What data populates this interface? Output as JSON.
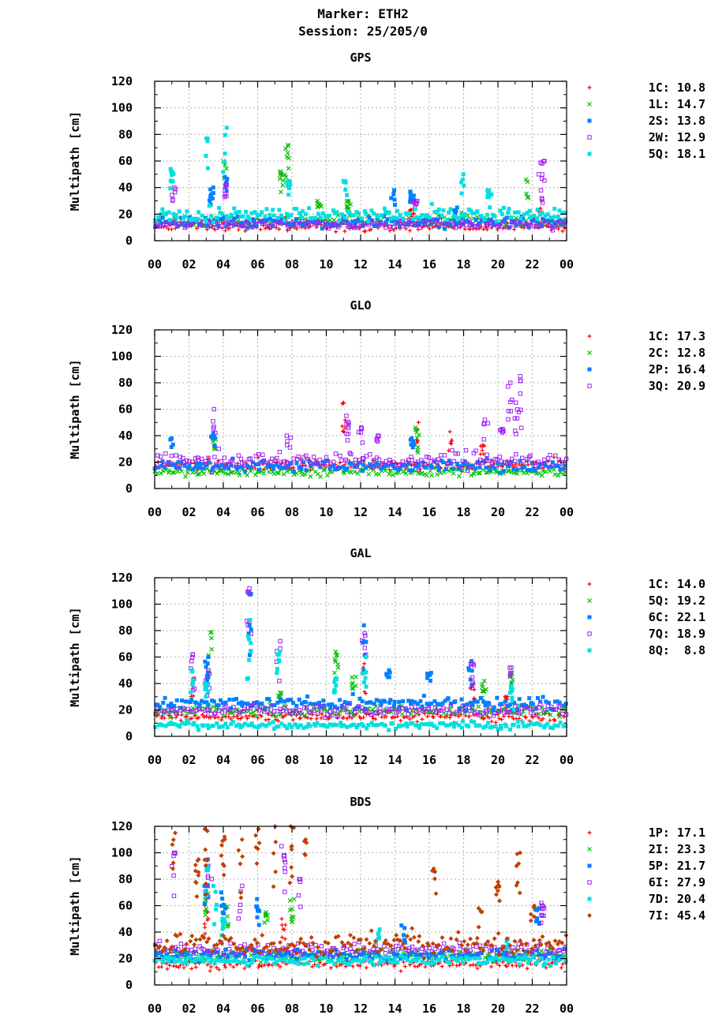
{
  "header": {
    "marker": "Marker: ETH2",
    "session": "Session: 25/205/0"
  },
  "chart_data": [
    {
      "type": "scatter",
      "title": "GPS",
      "ylabel": "Multipath [cm]",
      "xlabel": "",
      "ylim": [
        0,
        120
      ],
      "yticks": [
        "0",
        "20",
        "40",
        "60",
        "80",
        "100",
        "120"
      ],
      "xlim": [
        0,
        24
      ],
      "xticks": [
        "00",
        "02",
        "04",
        "06",
        "08",
        "10",
        "12",
        "14",
        "16",
        "18",
        "20",
        "22",
        "00"
      ],
      "grid": true,
      "legend_position": "right",
      "series": [
        {
          "name": "1C",
          "label": "1C: 10.8",
          "color": "#ff0000",
          "marker": "plus",
          "base": 10,
          "spread": 6,
          "spikes": [
            [
              22.5,
              30
            ],
            [
              15,
              24
            ],
            [
              7.7,
              18
            ]
          ]
        },
        {
          "name": "1L",
          "label": "1L: 14.7",
          "color": "#00c000",
          "marker": "cross",
          "base": 14,
          "spread": 8,
          "spikes": [
            [
              4.1,
              60
            ],
            [
              7.7,
              72
            ],
            [
              7.4,
              52
            ],
            [
              21.7,
              46
            ],
            [
              11.3,
              30
            ],
            [
              9.6,
              30
            ]
          ]
        },
        {
          "name": "2S",
          "label": "2S: 13.8",
          "color": "#0080ff",
          "marker": "square",
          "base": 13,
          "spread": 8,
          "spikes": [
            [
              15,
              37
            ],
            [
              13.9,
              38
            ],
            [
              4.1,
              48
            ],
            [
              3.3,
              40
            ],
            [
              17.5,
              25
            ]
          ]
        },
        {
          "name": "2W",
          "label": "2W: 12.9",
          "color": "#a020f0",
          "marker": "opensquare",
          "base": 12,
          "spread": 7,
          "spikes": [
            [
              22.6,
              60
            ],
            [
              22.5,
              50
            ],
            [
              1.1,
              40
            ],
            [
              15.2,
              30
            ],
            [
              4.1,
              43
            ]
          ]
        },
        {
          "name": "5Q",
          "label": "5Q: 18.1",
          "color": "#00e0e0",
          "marker": "square",
          "base": 19,
          "spread": 10,
          "spikes": [
            [
              3.1,
              77
            ],
            [
              4.1,
              85
            ],
            [
              1,
              54
            ],
            [
              17.9,
              50
            ],
            [
              7.8,
              45
            ],
            [
              11.1,
              45
            ],
            [
              19.5,
              38
            ]
          ]
        }
      ]
    },
    {
      "type": "scatter",
      "title": "GLO",
      "ylabel": "Multipath [cm]",
      "xlabel": "",
      "ylim": [
        0,
        120
      ],
      "yticks": [
        "0",
        "20",
        "40",
        "60",
        "80",
        "100",
        "120"
      ],
      "xlim": [
        0,
        24
      ],
      "xticks": [
        "00",
        "02",
        "04",
        "06",
        "08",
        "10",
        "12",
        "14",
        "16",
        "18",
        "20",
        "22",
        "00"
      ],
      "grid": true,
      "legend_position": "right",
      "series": [
        {
          "name": "1C",
          "label": "1C: 17.3",
          "color": "#ff0000",
          "marker": "plus",
          "base": 17,
          "spread": 8,
          "spikes": [
            [
              11,
              65
            ],
            [
              15.3,
              50
            ],
            [
              17.2,
              43
            ],
            [
              19.1,
              33
            ]
          ]
        },
        {
          "name": "2C",
          "label": "2C: 12.8",
          "color": "#00c000",
          "marker": "cross",
          "base": 12,
          "spread": 6,
          "spikes": [
            [
              15.3,
              46
            ],
            [
              3.5,
              40
            ]
          ]
        },
        {
          "name": "2P",
          "label": "2P: 16.4",
          "color": "#0080ff",
          "marker": "square",
          "base": 16,
          "spread": 8,
          "spikes": [
            [
              3.4,
              42
            ],
            [
              1,
              38
            ],
            [
              15,
              38
            ]
          ]
        },
        {
          "name": "3Q",
          "label": "3Q: 20.9",
          "color": "#a020f0",
          "marker": "opensquare",
          "base": 20,
          "spread": 12,
          "spikes": [
            [
              3.5,
              60
            ],
            [
              20.7,
              80
            ],
            [
              21.4,
              85
            ],
            [
              21.1,
              65
            ],
            [
              11.2,
              55
            ],
            [
              19.3,
              52
            ],
            [
              20.2,
              45
            ],
            [
              12,
              46
            ],
            [
              13,
              40
            ],
            [
              7.8,
              40
            ]
          ]
        }
      ]
    },
    {
      "type": "scatter",
      "title": "GAL",
      "ylabel": "Multipath [cm]",
      "xlabel": "",
      "ylim": [
        0,
        120
      ],
      "yticks": [
        "0",
        "20",
        "40",
        "60",
        "80",
        "100",
        "120"
      ],
      "xlim": [
        0,
        24
      ],
      "xticks": [
        "00",
        "02",
        "04",
        "06",
        "08",
        "10",
        "12",
        "14",
        "16",
        "18",
        "20",
        "22",
        "00"
      ],
      "grid": true,
      "legend_position": "right",
      "series": [
        {
          "name": "1C",
          "label": "1C: 14.0",
          "color": "#ff0000",
          "marker": "plus",
          "base": 14,
          "spread": 6,
          "spikes": [
            [
              2.2,
              44
            ],
            [
              12.2,
              55
            ],
            [
              18.5,
              40
            ],
            [
              20.5,
              30
            ]
          ]
        },
        {
          "name": "5Q",
          "label": "5Q: 19.2",
          "color": "#00c000",
          "marker": "cross",
          "base": 19,
          "spread": 8,
          "spikes": [
            [
              3.2,
              79
            ],
            [
              10.6,
              64
            ],
            [
              11.6,
              45
            ],
            [
              7.3,
              33
            ],
            [
              19.2,
              42
            ],
            [
              20.8,
              48
            ]
          ]
        },
        {
          "name": "6C",
          "label": "6C: 22.1",
          "color": "#0080ff",
          "marker": "square",
          "base": 24,
          "spread": 9,
          "spikes": [
            [
              12.2,
              84
            ],
            [
              13.6,
              50
            ],
            [
              16,
              48
            ],
            [
              18.4,
              57
            ],
            [
              5.5,
              108
            ],
            [
              3,
              60
            ]
          ]
        },
        {
          "name": "7Q",
          "label": "7Q: 18.9",
          "color": "#a020f0",
          "marker": "opensquare",
          "base": 19,
          "spread": 8,
          "spikes": [
            [
              5.5,
              112
            ],
            [
              7.2,
              72
            ],
            [
              2.2,
              62
            ],
            [
              12.2,
              78
            ],
            [
              20.7,
              52
            ],
            [
              18.5,
              55
            ],
            [
              3.1,
              50
            ]
          ]
        },
        {
          "name": "8Q",
          "label": "8Q:  8.8",
          "color": "#00e0e0",
          "marker": "square",
          "base": 8,
          "spread": 5,
          "spikes": [
            [
              5.5,
              88
            ],
            [
              12.2,
              60
            ],
            [
              7.2,
              64
            ],
            [
              3,
              40
            ],
            [
              10.5,
              44
            ],
            [
              2.2,
              50
            ],
            [
              20.8,
              38
            ]
          ]
        }
      ]
    },
    {
      "type": "scatter",
      "title": "BDS",
      "ylabel": "Multipath [cm]",
      "xlabel": "",
      "ylim": [
        0,
        120
      ],
      "yticks": [
        "0",
        "20",
        "40",
        "60",
        "80",
        "100",
        "120"
      ],
      "xlim": [
        0,
        24
      ],
      "xticks": [
        "00",
        "02",
        "04",
        "06",
        "08",
        "10",
        "12",
        "14",
        "16",
        "18",
        "20",
        "22",
        "00"
      ],
      "grid": true,
      "legend_position": "right",
      "series": [
        {
          "name": "1P",
          "label": "1P: 17.1",
          "color": "#ff0000",
          "marker": "plus",
          "base": 15,
          "spread": 7,
          "spikes": [
            [
              3,
              60
            ],
            [
              7.5,
              50
            ]
          ]
        },
        {
          "name": "2I",
          "label": "2I: 23.3",
          "color": "#00c000",
          "marker": "cross",
          "base": 22,
          "spread": 9,
          "spikes": [
            [
              3,
              70
            ],
            [
              4.2,
              60
            ],
            [
              8,
              65
            ],
            [
              6.5,
              55
            ]
          ]
        },
        {
          "name": "5P",
          "label": "5P: 21.7",
          "color": "#0080ff",
          "marker": "square",
          "base": 22,
          "spread": 8,
          "spikes": [
            [
              3,
              95
            ],
            [
              4,
              70
            ],
            [
              6,
              65
            ],
            [
              22.3,
              58
            ],
            [
              14.5,
              45
            ]
          ]
        },
        {
          "name": "6I",
          "label": "6I: 27.9",
          "color": "#a020f0",
          "marker": "opensquare",
          "base": 26,
          "spread": 10,
          "spikes": [
            [
              1.1,
              100
            ],
            [
              3.2,
              90
            ],
            [
              7.5,
              105
            ],
            [
              8.5,
              80
            ],
            [
              5,
              75
            ],
            [
              22.6,
              62
            ]
          ]
        },
        {
          "name": "7D",
          "label": "7D: 20.4",
          "color": "#00e0e0",
          "marker": "square",
          "base": 18,
          "spread": 7,
          "spikes": [
            [
              3,
              90
            ],
            [
              3.5,
              75
            ],
            [
              4,
              50
            ],
            [
              13,
              42
            ],
            [
              20.5,
              35
            ]
          ]
        },
        {
          "name": "7I",
          "label": "7I: 45.4",
          "color": "#c04000",
          "marker": "diamond",
          "base": 30,
          "spread": 16,
          "spikes": [
            [
              1.1,
              115
            ],
            [
              3,
              118
            ],
            [
              4,
              112
            ],
            [
              5,
              110
            ],
            [
              6,
              118
            ],
            [
              7,
              120
            ],
            [
              8,
              120
            ],
            [
              8.8,
              110
            ],
            [
              2.5,
              95
            ],
            [
              16.3,
              88
            ],
            [
              20,
              78
            ],
            [
              21.2,
              100
            ],
            [
              19,
              58
            ],
            [
              22,
              60
            ]
          ]
        }
      ]
    }
  ]
}
